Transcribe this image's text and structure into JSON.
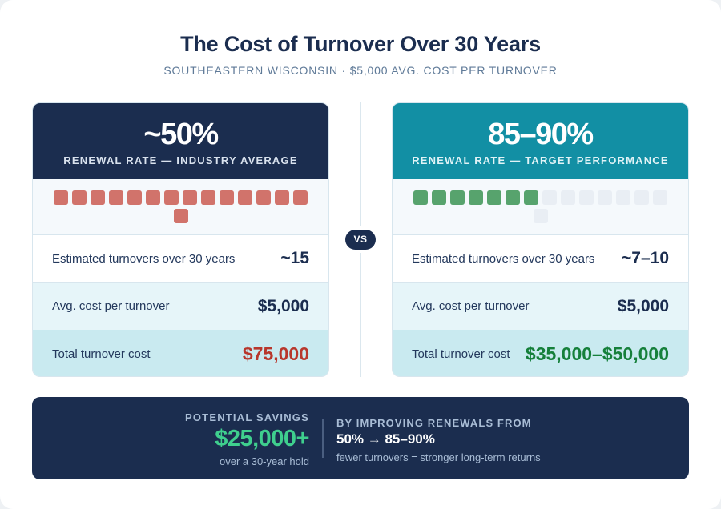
{
  "header": {
    "title": "The Cost of Turnover Over 30 Years",
    "subtitle": "SOUTHEASTERN WISCONSIN · $5,000 AVG. COST PER TURNOVER"
  },
  "colors": {
    "navy": "#1b2d4f",
    "teal": "#128fa4",
    "turnover_block": "#d1736b",
    "retained_block": "#57a36d",
    "empty_block": "#e9eef4",
    "bad_total": "#b8372c",
    "good_total": "#16803b",
    "savings_accent": "#3fcf8e"
  },
  "left_card": {
    "rate": "~50%",
    "rate_label": "RENEWAL RATE — INDUSTRY AVERAGE",
    "blocks": {
      "filled": 15,
      "empty": 0,
      "total": 15
    },
    "rows": [
      {
        "label": "Estimated turnovers over 30 years",
        "value": "~15"
      },
      {
        "label": "Avg. cost per turnover",
        "value": "$5,000"
      },
      {
        "label": "Total turnover cost",
        "value": "$75,000"
      }
    ]
  },
  "vs_label": "VS",
  "right_card": {
    "rate": "85–90%",
    "rate_label": "RENEWAL RATE — TARGET PERFORMANCE",
    "blocks": {
      "filled": 7,
      "empty": 8,
      "total": 15
    },
    "rows": [
      {
        "label": "Estimated turnovers over 30 years",
        "value": "~7–10"
      },
      {
        "label": "Avg. cost per turnover",
        "value": "$5,000"
      },
      {
        "label": "Total turnover cost",
        "value": "$35,000–$50,000"
      }
    ]
  },
  "savings": {
    "kicker": "POTENTIAL SAVINGS",
    "amount": "$25,000+",
    "note": "over a 30-year hold",
    "right_kicker": "BY IMPROVING RENEWALS FROM",
    "change": "50% → 85–90%",
    "right_note": "fewer turnovers = stronger long-term returns"
  }
}
